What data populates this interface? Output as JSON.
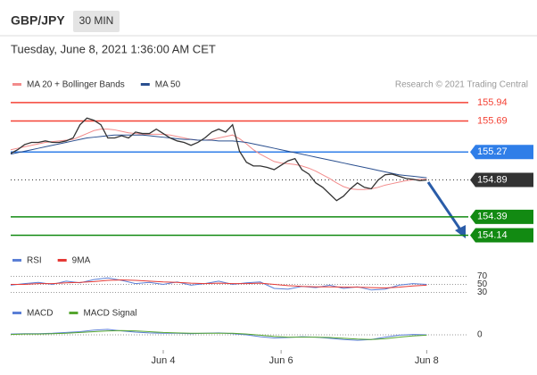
{
  "header": {
    "symbol": "GBP/JPY",
    "interval": "30 MIN",
    "timestamp": "Tuesday, June 8, 2021 1:36:00 AM CET"
  },
  "chart_data": [
    {
      "type": "line",
      "attribution": "Research © 2021 Trading Central",
      "x": [
        0,
        1,
        2,
        3,
        4,
        5,
        6,
        7,
        8,
        9,
        10,
        11,
        12,
        13,
        14,
        15,
        16,
        17,
        18,
        19,
        20,
        21,
        22,
        23,
        24,
        25,
        26,
        27,
        28,
        29,
        30,
        31,
        32,
        33,
        34,
        35,
        36,
        37,
        38,
        39,
        40,
        41,
        42,
        43,
        44,
        45,
        46,
        47,
        48,
        49,
        50,
        51,
        52,
        53,
        54,
        55,
        56,
        57,
        58,
        59,
        60
      ],
      "xlim": [
        0,
        66
      ],
      "ylim": [
        154.0,
        156.06
      ],
      "color": "#333333",
      "values": [
        155.25,
        155.3,
        155.37,
        155.4,
        155.4,
        155.42,
        155.4,
        155.4,
        155.42,
        155.46,
        155.64,
        155.73,
        155.7,
        155.64,
        155.46,
        155.46,
        155.49,
        155.46,
        155.54,
        155.52,
        155.52,
        155.58,
        155.52,
        155.46,
        155.42,
        155.4,
        155.36,
        155.4,
        155.46,
        155.54,
        155.58,
        155.54,
        155.64,
        155.28,
        155.13,
        155.08,
        155.08,
        155.06,
        155.03,
        155.09,
        155.15,
        155.18,
        155.03,
        154.97,
        154.85,
        154.79,
        154.7,
        154.61,
        154.67,
        154.77,
        154.85,
        154.79,
        154.77,
        154.89,
        154.96,
        154.97,
        154.94,
        154.91,
        154.9,
        154.88,
        154.89
      ],
      "series": [
        {
          "name": "MA 20 + Bollinger Bands",
          "color": "#f28b8b",
          "values": [
            155.3,
            155.32,
            155.34,
            155.36,
            155.38,
            155.4,
            155.41,
            155.42,
            155.43,
            155.44,
            155.48,
            155.52,
            155.56,
            155.58,
            155.58,
            155.57,
            155.55,
            155.53,
            155.52,
            155.51,
            155.51,
            155.51,
            155.51,
            155.5,
            155.48,
            155.46,
            155.44,
            155.43,
            155.43,
            155.44,
            155.46,
            155.48,
            155.5,
            155.45,
            155.38,
            155.3,
            155.24,
            155.19,
            155.14,
            155.12,
            155.11,
            155.1,
            155.08,
            155.05,
            155.01,
            154.96,
            154.91,
            154.85,
            154.8,
            154.77,
            154.76,
            154.76,
            154.77,
            154.79,
            154.82,
            154.84,
            154.86,
            154.88,
            154.89,
            154.9,
            154.9
          ]
        },
        {
          "name": "MA 50",
          "color": "#2a4f8f",
          "values": [
            155.24,
            155.26,
            155.28,
            155.3,
            155.32,
            155.34,
            155.36,
            155.38,
            155.4,
            155.42,
            155.44,
            155.46,
            155.47,
            155.48,
            155.49,
            155.5,
            155.5,
            155.5,
            155.5,
            155.5,
            155.49,
            155.48,
            155.47,
            155.46,
            155.45,
            155.44,
            155.44,
            155.43,
            155.43,
            155.43,
            155.42,
            155.42,
            155.42,
            155.41,
            155.4,
            155.38,
            155.36,
            155.34,
            155.32,
            155.3,
            155.28,
            155.26,
            155.24,
            155.22,
            155.2,
            155.18,
            155.16,
            155.14,
            155.12,
            155.1,
            155.08,
            155.06,
            155.04,
            155.02,
            155.0,
            154.98,
            154.96,
            154.95,
            154.94,
            154.93,
            154.92
          ]
        }
      ],
      "levels": [
        {
          "value": 155.94,
          "color": "#f44336",
          "boxed": false,
          "dotted": false
        },
        {
          "value": 155.69,
          "color": "#f44336",
          "boxed": false,
          "dotted": false
        },
        {
          "value": 155.27,
          "color": "#2f7ee8",
          "boxed": true,
          "dotted": false
        },
        {
          "value": 154.89,
          "color": "#333333",
          "boxed": true,
          "dotted": true
        },
        {
          "value": 154.39,
          "color": "#128a12",
          "boxed": true,
          "dotted": false
        },
        {
          "value": 154.14,
          "color": "#128a12",
          "boxed": true,
          "dotted": false
        }
      ]
    },
    {
      "type": "line",
      "x": [
        0,
        2,
        4,
        6,
        8,
        10,
        12,
        14,
        16,
        18,
        20,
        22,
        24,
        26,
        28,
        30,
        32,
        34,
        36,
        38,
        40,
        42,
        44,
        46,
        48,
        50,
        52,
        54,
        56,
        58,
        60
      ],
      "xlim": [
        0,
        66
      ],
      "ylim": [
        20,
        80
      ],
      "yticks": [
        30,
        50,
        70
      ],
      "series": [
        {
          "name": "RSI",
          "color": "#5b7fd6",
          "values": [
            48,
            52,
            55,
            50,
            58,
            54,
            62,
            66,
            60,
            52,
            55,
            50,
            56,
            48,
            52,
            58,
            50,
            54,
            56,
            40,
            38,
            45,
            42,
            48,
            40,
            44,
            36,
            38,
            48,
            52,
            50
          ]
        },
        {
          "name": "9MA",
          "color": "#e53935",
          "values": [
            50,
            50,
            52,
            52,
            54,
            55,
            57,
            60,
            61,
            60,
            58,
            56,
            55,
            53,
            52,
            53,
            52,
            52,
            53,
            50,
            47,
            45,
            44,
            44,
            43,
            43,
            42,
            41,
            43,
            46,
            48
          ]
        }
      ]
    },
    {
      "type": "line",
      "x": [
        0,
        2,
        4,
        6,
        8,
        10,
        12,
        14,
        16,
        18,
        20,
        22,
        24,
        26,
        28,
        30,
        32,
        34,
        36,
        38,
        40,
        42,
        44,
        46,
        48,
        50,
        52,
        54,
        56,
        58,
        60
      ],
      "xlim": [
        0,
        66
      ],
      "ylim": [
        -0.3,
        0.3
      ],
      "yticks": [
        0
      ],
      "xticks": [
        {
          "value": 22,
          "label": "Jun 4"
        },
        {
          "value": 39,
          "label": "Jun 6"
        },
        {
          "value": 60,
          "label": "Jun 8"
        }
      ],
      "series": [
        {
          "name": "MACD",
          "color": "#5b7fd6",
          "values": [
            0.02,
            0.03,
            0.03,
            0.04,
            0.06,
            0.08,
            0.12,
            0.14,
            0.1,
            0.07,
            0.05,
            0.04,
            0.04,
            0.03,
            0.04,
            0.05,
            0.03,
            0.0,
            -0.05,
            -0.08,
            -0.07,
            -0.05,
            -0.06,
            -0.09,
            -0.12,
            -0.14,
            -0.12,
            -0.06,
            -0.01,
            0.01,
            0.0
          ]
        },
        {
          "name": "MACD Signal",
          "color": "#55a630",
          "values": [
            0.01,
            0.02,
            0.02,
            0.03,
            0.04,
            0.06,
            0.08,
            0.1,
            0.11,
            0.1,
            0.08,
            0.06,
            0.05,
            0.04,
            0.04,
            0.04,
            0.04,
            0.02,
            -0.01,
            -0.04,
            -0.06,
            -0.06,
            -0.06,
            -0.07,
            -0.09,
            -0.11,
            -0.12,
            -0.1,
            -0.06,
            -0.03,
            -0.01
          ]
        }
      ]
    }
  ]
}
